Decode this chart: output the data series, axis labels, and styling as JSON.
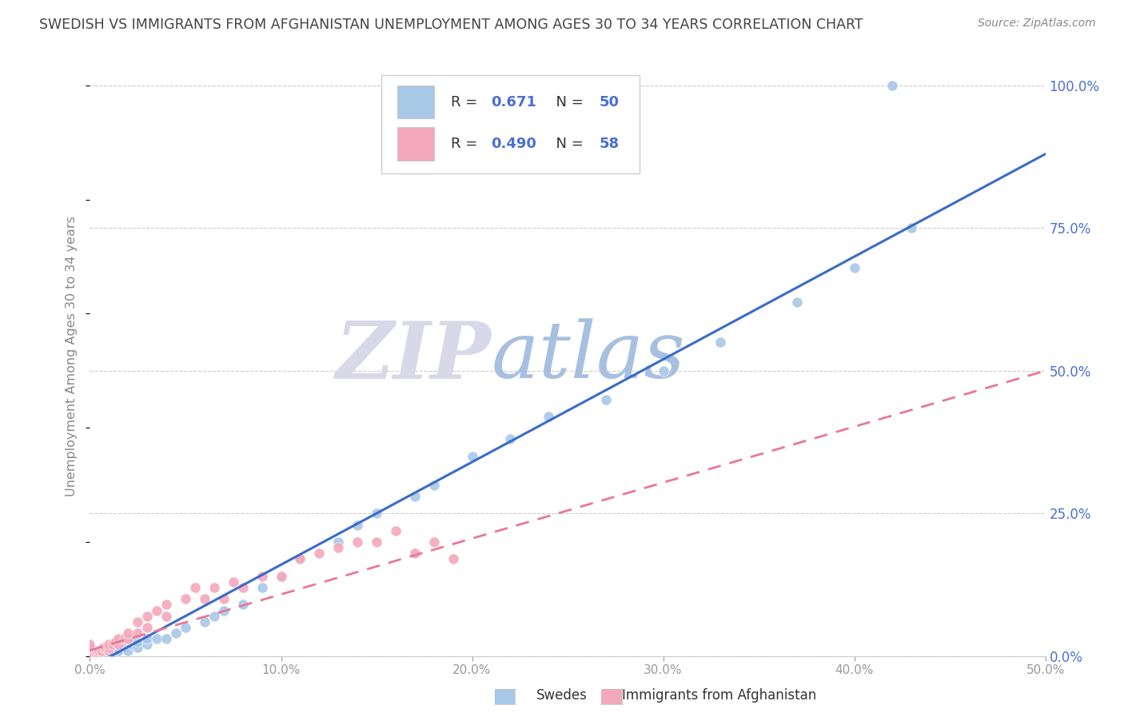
{
  "title": "SWEDISH VS IMMIGRANTS FROM AFGHANISTAN UNEMPLOYMENT AMONG AGES 30 TO 34 YEARS CORRELATION CHART",
  "source": "Source: ZipAtlas.com",
  "ylabel": "Unemployment Among Ages 30 to 34 years",
  "xlim": [
    0.0,
    0.5
  ],
  "ylim": [
    0.0,
    1.05
  ],
  "yticks_right": [
    0.0,
    0.25,
    0.5,
    0.75,
    1.0
  ],
  "ytick_labels_right": [
    "0.0%",
    "25.0%",
    "50.0%",
    "75.0%",
    "100.0%"
  ],
  "xticks": [
    0.0,
    0.1,
    0.2,
    0.3,
    0.4,
    0.5
  ],
  "xtick_labels": [
    "0.0%",
    "10.0%",
    "20.0%",
    "30.0%",
    "40.0%",
    "50.0%"
  ],
  "R_blue": 0.671,
  "N_blue": 50,
  "R_pink": 0.49,
  "N_pink": 58,
  "blue_scatter_color": "#a8c8e8",
  "pink_scatter_color": "#f4a8bc",
  "trend_blue_color": "#3a6bc8",
  "trend_pink_color": "#e87898",
  "watermark_ZIP_color": "#d8d8e8",
  "watermark_atlas_color": "#a8c0e0",
  "title_color": "#444444",
  "title_fontsize": 12.5,
  "source_color": "#888888",
  "axis_label_color": "#888888",
  "tick_color": "#999999",
  "right_tick_color": "#4a70d0",
  "grid_color": "#cccccc",
  "legend_edge_color": "#cccccc",
  "swedes_x": [
    0.0,
    0.0,
    0.0,
    0.0,
    0.0,
    0.002,
    0.003,
    0.004,
    0.005,
    0.005,
    0.006,
    0.008,
    0.01,
    0.01,
    0.012,
    0.014,
    0.015,
    0.018,
    0.02,
    0.022,
    0.025,
    0.025,
    0.03,
    0.03,
    0.035,
    0.04,
    0.045,
    0.05,
    0.06,
    0.065,
    0.07,
    0.08,
    0.09,
    0.1,
    0.11,
    0.13,
    0.14,
    0.15,
    0.17,
    0.18,
    0.2,
    0.22,
    0.24,
    0.27,
    0.3,
    0.33,
    0.37,
    0.4,
    0.43,
    0.42
  ],
  "swedes_y": [
    0.0,
    0.0,
    0.0,
    0.0,
    0.005,
    0.0,
    0.003,
    0.004,
    0.0,
    0.005,
    0.005,
    0.008,
    0.0,
    0.01,
    0.005,
    0.01,
    0.01,
    0.015,
    0.01,
    0.02,
    0.015,
    0.025,
    0.02,
    0.03,
    0.03,
    0.03,
    0.04,
    0.05,
    0.06,
    0.07,
    0.08,
    0.09,
    0.12,
    0.14,
    0.17,
    0.2,
    0.23,
    0.25,
    0.28,
    0.3,
    0.35,
    0.38,
    0.42,
    0.45,
    0.5,
    0.55,
    0.62,
    0.68,
    0.75,
    1.0
  ],
  "afghan_x": [
    0.0,
    0.0,
    0.0,
    0.0,
    0.0,
    0.0,
    0.0,
    0.0,
    0.0,
    0.0,
    0.0,
    0.0,
    0.0,
    0.0,
    0.0,
    0.002,
    0.003,
    0.004,
    0.005,
    0.005,
    0.006,
    0.007,
    0.008,
    0.01,
    0.01,
    0.01,
    0.012,
    0.013,
    0.015,
    0.015,
    0.018,
    0.02,
    0.02,
    0.025,
    0.025,
    0.03,
    0.03,
    0.035,
    0.04,
    0.04,
    0.05,
    0.055,
    0.06,
    0.065,
    0.07,
    0.075,
    0.08,
    0.09,
    0.1,
    0.11,
    0.12,
    0.13,
    0.14,
    0.15,
    0.16,
    0.17,
    0.18,
    0.19
  ],
  "afghan_y": [
    0.0,
    0.0,
    0.0,
    0.0,
    0.0,
    0.0,
    0.0,
    0.005,
    0.005,
    0.008,
    0.01,
    0.01,
    0.015,
    0.015,
    0.02,
    0.0,
    0.005,
    0.005,
    0.005,
    0.01,
    0.01,
    0.015,
    0.015,
    0.01,
    0.015,
    0.02,
    0.02,
    0.025,
    0.02,
    0.03,
    0.03,
    0.03,
    0.04,
    0.04,
    0.06,
    0.05,
    0.07,
    0.08,
    0.07,
    0.09,
    0.1,
    0.12,
    0.1,
    0.12,
    0.1,
    0.13,
    0.12,
    0.14,
    0.14,
    0.17,
    0.18,
    0.19,
    0.2,
    0.2,
    0.22,
    0.18,
    0.2,
    0.17
  ],
  "blue_trend_x0": 0.0,
  "blue_trend_y0": -0.02,
  "blue_trend_x1": 0.5,
  "blue_trend_y1": 0.88,
  "pink_trend_x0": 0.0,
  "pink_trend_y0": 0.01,
  "pink_trend_x1": 0.5,
  "pink_trend_y1": 0.5
}
